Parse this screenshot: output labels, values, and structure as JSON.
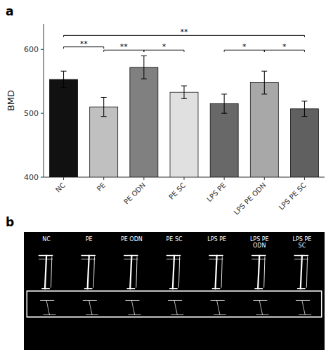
{
  "chart_data": [
    {
      "type": "bar",
      "title": "a",
      "categories": [
        "NC",
        "PE",
        "PE ODN",
        "PE SC",
        "LPS PE",
        "LPS PE ODN",
        "LPS PE SC"
      ],
      "values": [
        553,
        510,
        572,
        533,
        515,
        548,
        507
      ],
      "errors": [
        13,
        15,
        18,
        10,
        15,
        18,
        12
      ],
      "colors": [
        "#111111",
        "#c0c0c0",
        "#808080",
        "#e0e0e0",
        "#686868",
        "#a8a8a8",
        "#606060"
      ],
      "ylabel": "BMD",
      "ylim": [
        400,
        640
      ],
      "yticks": [
        400,
        500,
        600
      ],
      "grid": false,
      "annotations": [
        {
          "text": "**",
          "between": [
            "NC",
            "PE"
          ],
          "y": 604
        },
        {
          "text": "**",
          "between": [
            "PE",
            "PE ODN"
          ],
          "y": 599
        },
        {
          "text": "*",
          "between": [
            "PE ODN",
            "PE SC"
          ],
          "y": 599
        },
        {
          "text": "*",
          "between": [
            "LPS PE",
            "LPS PE ODN"
          ],
          "y": 599
        },
        {
          "text": "*",
          "between": [
            "LPS PE ODN",
            "LPS PE SC"
          ],
          "y": 599
        },
        {
          "text": "**",
          "between": [
            "NC",
            "LPS PE SC"
          ],
          "y": 622
        }
      ]
    },
    {
      "type": "image",
      "title": "b",
      "categories": [
        "NC",
        "PE",
        "PE ODN",
        "PE SC",
        "LPS PE",
        "LPS PE\nODN",
        "LPS PE\nSC"
      ]
    }
  ]
}
